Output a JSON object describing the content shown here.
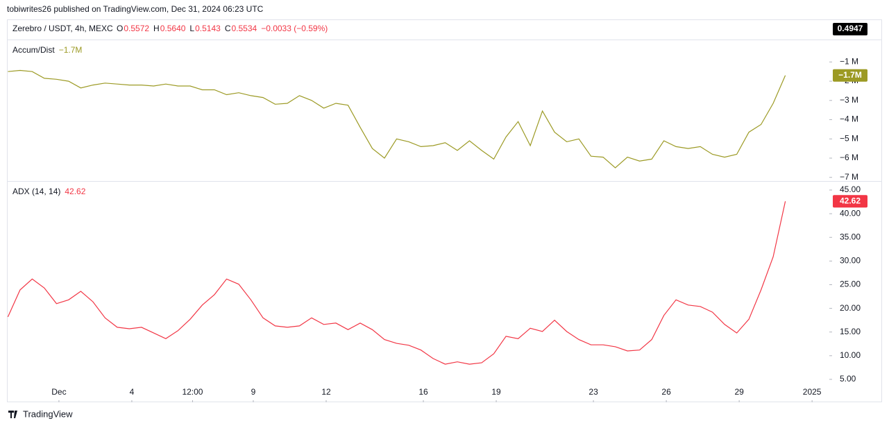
{
  "header": {
    "publisher": "tobiwrites26 published on TradingView.com, Dec 31, 2024 06:23 UTC",
    "symbol": "Zerebro / USDT, 4h, MEXC",
    "ohlc": [
      {
        "label": "O",
        "value": "0.5572"
      },
      {
        "label": "H",
        "value": "0.5640"
      },
      {
        "label": "L",
        "value": "0.5143"
      },
      {
        "label": "C",
        "value": "0.5534"
      }
    ],
    "change": "−0.0033 (−0.59%)",
    "price_label": "0.4947"
  },
  "footer": {
    "brand": "TradingView"
  },
  "chart_data": [
    {
      "type": "line",
      "title": "Accum/Dist",
      "color": "#9c9a24",
      "last_value_label": "−1.7M",
      "x": [
        -1.1,
        -0.6,
        -0.1,
        0.4,
        0.9,
        1.4,
        1.9,
        2.4,
        2.9,
        3.4,
        3.9,
        4.4,
        4.9,
        5.4,
        5.9,
        6.4,
        6.9,
        7.4,
        7.9,
        8.4,
        8.9,
        9.4,
        9.9,
        10.4,
        10.9,
        11.4,
        11.9,
        12.4,
        12.9,
        13.4,
        13.9,
        14.4,
        14.9,
        15.4,
        15.9,
        16.4,
        16.9,
        17.4,
        17.9,
        18.4,
        18.9,
        19.4,
        19.9,
        20.4,
        20.9,
        21.4,
        21.9,
        22.4,
        22.9,
        23.4,
        23.9,
        24.4,
        24.9,
        25.4,
        25.9,
        26.4,
        26.9,
        27.4,
        27.9,
        28.4,
        28.9,
        29.4,
        29.9,
        30.4,
        30.9
      ],
      "values": [
        -1.5,
        -1.44,
        -1.5,
        -1.85,
        -1.9,
        -2.0,
        -2.35,
        -2.2,
        -2.1,
        -2.15,
        -2.2,
        -2.2,
        -2.25,
        -2.15,
        -2.25,
        -2.25,
        -2.45,
        -2.45,
        -2.7,
        -2.6,
        -2.75,
        -2.85,
        -3.2,
        -3.15,
        -2.75,
        -3.0,
        -3.4,
        -3.15,
        -3.25,
        -4.4,
        -5.5,
        -6.0,
        -5.0,
        -5.15,
        -5.4,
        -5.35,
        -5.2,
        -5.6,
        -5.1,
        -5.6,
        -6.05,
        -4.9,
        -4.1,
        -5.35,
        -3.55,
        -4.65,
        -5.15,
        -5.0,
        -5.9,
        -5.95,
        -6.5,
        -5.95,
        -6.15,
        -6.05,
        -5.1,
        -5.4,
        -5.5,
        -5.4,
        -5.8,
        -5.95,
        -5.8,
        -4.65,
        -4.25,
        -3.15,
        -1.7
      ],
      "xlim": [
        -1.14,
        32.71
      ],
      "ylim": [
        -7.19,
        0.13
      ],
      "yticks": [
        {
          "value": -1,
          "label": "−1 M"
        },
        {
          "value": -2,
          "label": "−2 M"
        },
        {
          "value": -3,
          "label": "−3 M"
        },
        {
          "value": -4,
          "label": "−4 M"
        },
        {
          "value": -5,
          "label": "−5 M"
        },
        {
          "value": -6,
          "label": "−6 M"
        },
        {
          "value": -7,
          "label": "−7 M"
        }
      ]
    },
    {
      "type": "line",
      "title": "ADX (14, 14)",
      "color": "#f23645",
      "x": [
        -1.1,
        -0.6,
        -0.1,
        0.4,
        0.9,
        1.4,
        1.9,
        2.4,
        2.9,
        3.4,
        3.9,
        4.4,
        4.9,
        5.4,
        5.9,
        6.4,
        6.9,
        7.4,
        7.9,
        8.4,
        8.9,
        9.4,
        9.9,
        10.4,
        10.9,
        11.4,
        11.9,
        12.4,
        12.9,
        13.4,
        13.9,
        14.4,
        14.9,
        15.4,
        15.9,
        16.4,
        16.9,
        17.4,
        17.9,
        18.4,
        18.9,
        19.4,
        19.9,
        20.4,
        20.9,
        21.4,
        21.9,
        22.4,
        22.9,
        23.4,
        23.9,
        24.4,
        24.9,
        25.4,
        25.9,
        26.4,
        26.9,
        27.4,
        27.9,
        28.4,
        28.9,
        29.4,
        29.9,
        30.4,
        30.9
      ],
      "values": [
        18.2,
        23.9,
        26.2,
        24.3,
        21.0,
        21.8,
        23.6,
        21.4,
        18.0,
        16.0,
        15.7,
        16.0,
        14.8,
        13.6,
        15.3,
        17.7,
        20.7,
        22.9,
        26.2,
        25.1,
        21.8,
        18.0,
        16.3,
        16.0,
        16.3,
        18.0,
        16.6,
        16.9,
        15.5,
        16.9,
        15.5,
        13.4,
        12.6,
        12.2,
        11.2,
        9.4,
        8.2,
        8.7,
        8.2,
        8.5,
        10.4,
        14.1,
        13.6,
        15.8,
        15.1,
        17.5,
        15.1,
        13.4,
        12.3,
        12.3,
        11.9,
        11.0,
        11.2,
        13.4,
        18.5,
        21.8,
        20.7,
        20.4,
        19.2,
        16.6,
        14.8,
        17.7,
        23.9,
        30.9,
        42.62
      ],
      "xlim": [
        -1.14,
        32.71
      ],
      "ylim": [
        0.16,
        46.76
      ],
      "yticks": [
        {
          "value": 5,
          "label": "5.00"
        },
        {
          "value": 10,
          "label": "10.00"
        },
        {
          "value": 15,
          "label": "15.00"
        },
        {
          "value": 20,
          "label": "20.00"
        },
        {
          "value": 25,
          "label": "25.00"
        },
        {
          "value": 30,
          "label": "30.00"
        },
        {
          "value": 35,
          "label": "35.00"
        },
        {
          "value": 40,
          "label": "40.00"
        },
        {
          "value": 45,
          "label": "45.00"
        }
      ],
      "xticks": [
        {
          "value": 1,
          "label": "Dec"
        },
        4,
        {
          "value": 6.5,
          "label": "12:00"
        },
        9,
        12,
        16,
        19,
        23,
        26,
        29,
        {
          "value": 32,
          "label": "2025"
        }
      ]
    }
  ]
}
